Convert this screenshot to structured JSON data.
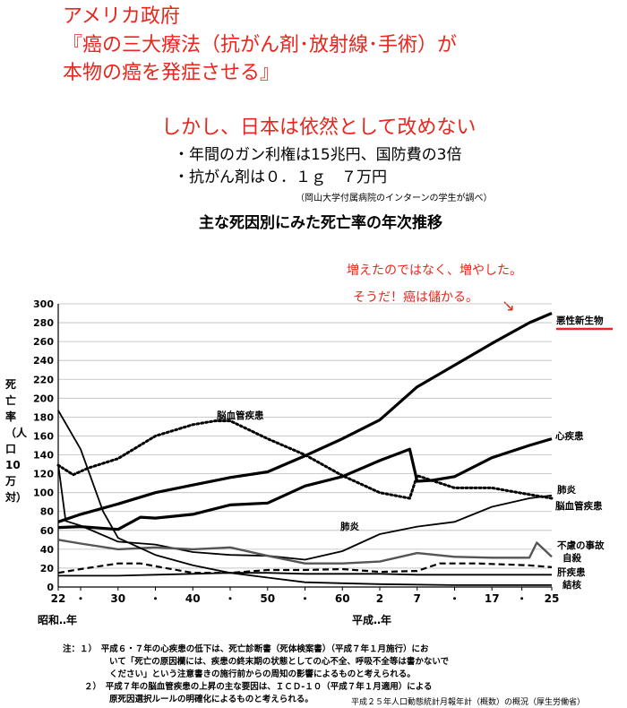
{
  "header": {
    "line1": "アメリカ政府",
    "line2": "『癌の三大療法（抗がん剤･放射線･手術）が",
    "line3": "本物の癌を発症させる』",
    "line4": "しかし、日本は依然として改めない",
    "bullet1": "・年間のガン利権は15兆円、国防費の3倍",
    "bullet2": "・抗がん剤は０．１ｇ　７万円",
    "source_note": "（岡山大学付属病院のインターンの学生が調べ）",
    "chart_title": "主な死因別にみた死亡率の年次推移"
  },
  "annotation": {
    "line1": "増えたのではなく、増やした。",
    "line2": "そうだ！癌は儲かる。",
    "arrow": "↘"
  },
  "colors": {
    "red": "#e8261e",
    "black": "#000000",
    "gray": "#555555"
  },
  "chart_data": {
    "type": "line",
    "ylabel": "死亡率（人口10万対）",
    "ylim": [
      0,
      300
    ],
    "yticks": [
      0,
      20,
      40,
      60,
      80,
      100,
      120,
      140,
      160,
      180,
      200,
      220,
      240,
      260,
      280,
      300
    ],
    "xlim": [
      1947,
      2013
    ],
    "xticks": [
      {
        "label": "22",
        "year": 1947
      },
      {
        "label": "・",
        "year": 1950
      },
      {
        "label": "30",
        "year": 1955
      },
      {
        "label": "・",
        "year": 1960
      },
      {
        "label": "40",
        "year": 1965
      },
      {
        "label": "・",
        "year": 1970
      },
      {
        "label": "50",
        "year": 1975
      },
      {
        "label": "・",
        "year": 1980
      },
      {
        "label": "60",
        "year": 1985
      },
      {
        "label": "2",
        "year": 1990
      },
      {
        "label": "7",
        "year": 1995
      },
      {
        "label": "・",
        "year": 2000
      },
      {
        "label": "17",
        "year": 2005
      },
      {
        "label": "・",
        "year": 2009
      },
      {
        "label": "25",
        "year": 2013
      }
    ],
    "era_showa": "昭和‥年",
    "era_heisei": "平成‥年",
    "series": [
      {
        "name": "悪性新生物",
        "style": "solid-thick",
        "points": [
          [
            1947,
            69
          ],
          [
            1950,
            77
          ],
          [
            1955,
            88
          ],
          [
            1960,
            100
          ],
          [
            1965,
            108
          ],
          [
            1970,
            116
          ],
          [
            1975,
            122
          ],
          [
            1980,
            139
          ],
          [
            1985,
            157
          ],
          [
            1990,
            177
          ],
          [
            1995,
            212
          ],
          [
            2000,
            235
          ],
          [
            2005,
            258
          ],
          [
            2010,
            280
          ],
          [
            2013,
            290
          ]
        ]
      },
      {
        "name": "心疾患",
        "style": "solid-thick",
        "points": [
          [
            1947,
            63
          ],
          [
            1950,
            64
          ],
          [
            1955,
            61
          ],
          [
            1958,
            74
          ],
          [
            1960,
            73
          ],
          [
            1965,
            77
          ],
          [
            1970,
            87
          ],
          [
            1975,
            89
          ],
          [
            1980,
            107
          ],
          [
            1985,
            117
          ],
          [
            1990,
            134
          ],
          [
            1994,
            146
          ],
          [
            1995,
            112
          ],
          [
            1997,
            113
          ],
          [
            2000,
            117
          ],
          [
            2005,
            137
          ],
          [
            2010,
            150
          ],
          [
            2013,
            157
          ]
        ]
      },
      {
        "name": "脳血管疾患",
        "style": "dotted",
        "points": [
          [
            1947,
            129
          ],
          [
            1949,
            119
          ],
          [
            1951,
            126
          ],
          [
            1955,
            136
          ],
          [
            1960,
            160
          ],
          [
            1965,
            172
          ],
          [
            1968,
            176
          ],
          [
            1970,
            176
          ],
          [
            1975,
            157
          ],
          [
            1980,
            140
          ],
          [
            1985,
            118
          ],
          [
            1990,
            100
          ],
          [
            1994,
            94
          ],
          [
            1995,
            118
          ],
          [
            2000,
            105
          ],
          [
            2005,
            105
          ],
          [
            2010,
            98
          ],
          [
            2013,
            94
          ]
        ]
      },
      {
        "name": "肺炎",
        "style": "solid",
        "points": [
          [
            1947,
            130
          ],
          [
            1948,
            70
          ],
          [
            1950,
            65
          ],
          [
            1955,
            48
          ],
          [
            1960,
            45
          ],
          [
            1965,
            37
          ],
          [
            1970,
            34
          ],
          [
            1975,
            33
          ],
          [
            1980,
            29
          ],
          [
            1985,
            38
          ],
          [
            1990,
            56
          ],
          [
            1995,
            64
          ],
          [
            2000,
            69
          ],
          [
            2005,
            85
          ],
          [
            2010,
            94
          ],
          [
            2013,
            97
          ]
        ]
      },
      {
        "name": "不慮の事故",
        "style": "solid-gray",
        "points": [
          [
            1947,
            50
          ],
          [
            1950,
            46
          ],
          [
            1955,
            40
          ],
          [
            1960,
            42
          ],
          [
            1965,
            40
          ],
          [
            1970,
            42
          ],
          [
            1975,
            33
          ],
          [
            1980,
            25
          ],
          [
            1985,
            25
          ],
          [
            1990,
            27
          ],
          [
            1995,
            36
          ],
          [
            2000,
            32
          ],
          [
            2005,
            31
          ],
          [
            2010,
            31
          ],
          [
            2011,
            47
          ],
          [
            2013,
            32
          ]
        ]
      },
      {
        "name": "自殺",
        "style": "dashed",
        "points": [
          [
            1947,
            15
          ],
          [
            1950,
            19
          ],
          [
            1955,
            25
          ],
          [
            1958,
            25
          ],
          [
            1960,
            22
          ],
          [
            1965,
            15
          ],
          [
            1970,
            15
          ],
          [
            1975,
            18
          ],
          [
            1980,
            18
          ],
          [
            1985,
            19
          ],
          [
            1990,
            16
          ],
          [
            1995,
            17
          ],
          [
            1998,
            25
          ],
          [
            2003,
            25
          ],
          [
            2010,
            23
          ],
          [
            2013,
            21
          ]
        ]
      },
      {
        "name": "肝疾患",
        "style": "solid",
        "points": [
          [
            1947,
            12
          ],
          [
            1955,
            12
          ],
          [
            1960,
            13
          ],
          [
            1965,
            14
          ],
          [
            1970,
            15
          ],
          [
            1975,
            15
          ],
          [
            1980,
            14
          ],
          [
            1985,
            14
          ],
          [
            1990,
            14
          ],
          [
            1995,
            13
          ],
          [
            2000,
            13
          ],
          [
            2005,
            13
          ],
          [
            2013,
            13
          ]
        ]
      },
      {
        "name": "結核",
        "style": "solid",
        "points": [
          [
            1947,
            187
          ],
          [
            1950,
            146
          ],
          [
            1953,
            80
          ],
          [
            1955,
            52
          ],
          [
            1960,
            34
          ],
          [
            1965,
            23
          ],
          [
            1970,
            15
          ],
          [
            1975,
            10
          ],
          [
            1980,
            5
          ],
          [
            1985,
            4
          ],
          [
            1990,
            3
          ],
          [
            2000,
            2
          ],
          [
            2013,
            2
          ]
        ]
      }
    ],
    "labels": [
      {
        "text": "悪性新生物",
        "series": "悪性新生物"
      },
      {
        "text": "心疾患",
        "series": "心疾患"
      },
      {
        "text": "脳血管疾患",
        "series": "脳血管疾患"
      },
      {
        "text": "肺炎",
        "series": "肺炎"
      },
      {
        "text": "脳血管疾患",
        "series": "脳血管疾患"
      },
      {
        "text": "肺炎",
        "series": "肺炎"
      },
      {
        "text": "不慮の事故",
        "series": "不慮の事故"
      },
      {
        "text": "自殺",
        "series": "自殺"
      },
      {
        "text": "肝疾患",
        "series": "肝疾患"
      },
      {
        "text": "結核",
        "series": "結核"
      }
    ]
  },
  "notes": {
    "note1_line1": "注：１）　平成６・７年の心疾患の低下は、死亡診断書（死体検案書）（平成７年１月施行）にお",
    "note1_line2": "いて「死亡の原因欄には、疾患の終末期の状態としての心不全、呼吸不全等は書かないで",
    "note1_line3": "ください」という注意書きの施行前からの周知の影響によるものと考えられる。",
    "note2_line1": "２）　平成７年の脳血管疾患の上昇の主な要因は、ＩＣＤ-１０（平成７年１月適用）による",
    "note2_line2": "原死因選択ルールの明確化によるものと考えられる。",
    "source": "平成２５年人口動態統計月報年計（概数）の概況（厚生労働省）"
  }
}
